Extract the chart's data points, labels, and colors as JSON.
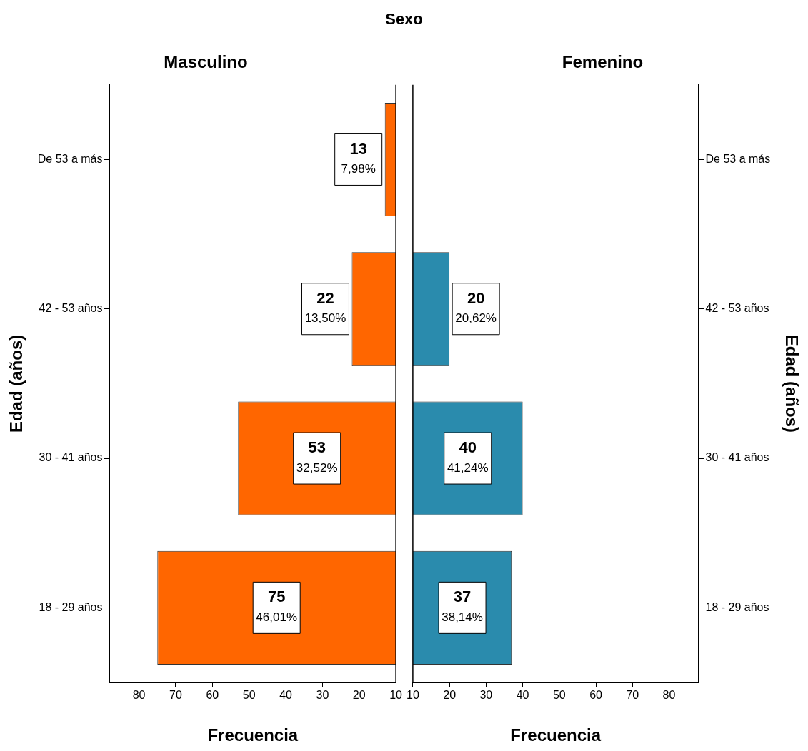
{
  "chart_data": [
    {
      "type": "bar",
      "orientation": "horizontal",
      "title": "Masculino",
      "annotations": [
        "Sexo"
      ],
      "xlabel": "Frecuencia",
      "ylabel": "Edad (años)",
      "categories": [
        "De 53 a más",
        "42 - 53 años",
        "30 - 41 años",
        "18 - 29 años"
      ],
      "values": [
        13,
        22,
        53,
        75
      ],
      "color": "#ff6600",
      "value_labels": [
        "13\n7,98%",
        "22\n13,50%",
        "53\n32,52%",
        "75\n46,01%"
      ],
      "xlim": [
        88,
        10
      ],
      "xticks": [
        80,
        70,
        60,
        50,
        40,
        30,
        20,
        10
      ]
    },
    {
      "type": "bar",
      "orientation": "horizontal",
      "title": "Femenino",
      "xlabel": "Frecuencia",
      "ylabel": "Edad (años)",
      "categories": [
        "De 53 a más",
        "42 - 53 años",
        "30 - 41 años",
        "18 - 29 años"
      ],
      "values": [
        null,
        20,
        40,
        37
      ],
      "color": "#2a8bad",
      "value_labels": [
        null,
        "20\n20,62%",
        "40\n41,24%",
        "37\n38,14%"
      ],
      "xlim": [
        10,
        88
      ],
      "xticks": [
        10,
        20,
        30,
        40,
        50,
        60,
        70,
        80
      ]
    }
  ]
}
